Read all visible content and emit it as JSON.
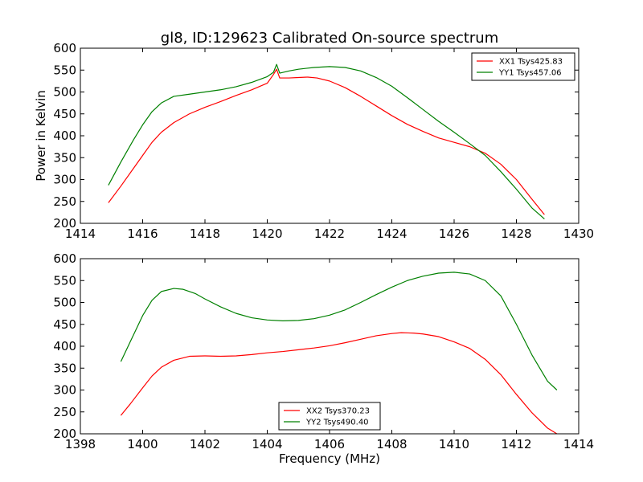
{
  "chart_data": [
    {
      "type": "line",
      "title": "gl8, ID:129623 Calibrated On-source spectrum",
      "xlabel": "",
      "ylabel": "Power in Kelvin",
      "xlim": [
        1414,
        1430
      ],
      "ylim": [
        200,
        600
      ],
      "xticks": [
        "1414",
        "1416",
        "1418",
        "1420",
        "1422",
        "1424",
        "1426",
        "1428",
        "1430"
      ],
      "yticks": [
        "200",
        "250",
        "300",
        "350",
        "400",
        "450",
        "500",
        "550",
        "600"
      ],
      "grid": false,
      "legend_position": "top-right",
      "series": [
        {
          "name": "XX1 Tsys425.83",
          "color": "#ff0000",
          "x": [
            1414.9,
            1415.3,
            1415.7,
            1416.0,
            1416.3,
            1416.6,
            1417.0,
            1417.5,
            1418.0,
            1418.5,
            1419.0,
            1419.5,
            1420.0,
            1420.2,
            1420.3,
            1420.4,
            1420.7,
            1421.0,
            1421.3,
            1421.6,
            1422.0,
            1422.5,
            1423.0,
            1423.5,
            1424.0,
            1424.5,
            1425.0,
            1425.5,
            1426.0,
            1426.5,
            1427.0,
            1427.5,
            1428.0,
            1428.5,
            1428.9
          ],
          "y": [
            247,
            285,
            325,
            355,
            385,
            408,
            430,
            450,
            465,
            478,
            492,
            505,
            520,
            540,
            552,
            532,
            532,
            533,
            534,
            532,
            525,
            510,
            490,
            468,
            446,
            426,
            410,
            395,
            385,
            375,
            360,
            335,
            300,
            255,
            220
          ]
        },
        {
          "name": "YY1 Tsys457.06",
          "color": "#008000",
          "x": [
            1414.9,
            1415.3,
            1415.7,
            1416.0,
            1416.3,
            1416.6,
            1417.0,
            1417.5,
            1418.0,
            1418.5,
            1419.0,
            1419.5,
            1420.0,
            1420.2,
            1420.3,
            1420.4,
            1420.7,
            1421.0,
            1421.5,
            1422.0,
            1422.5,
            1423.0,
            1423.5,
            1424.0,
            1424.5,
            1425.0,
            1425.5,
            1426.0,
            1426.5,
            1427.0,
            1427.5,
            1428.0,
            1428.5,
            1428.9
          ],
          "y": [
            287,
            340,
            390,
            425,
            455,
            475,
            490,
            495,
            500,
            505,
            512,
            522,
            535,
            545,
            563,
            543,
            548,
            552,
            556,
            558,
            556,
            548,
            533,
            513,
            487,
            460,
            433,
            408,
            382,
            355,
            318,
            278,
            235,
            210
          ]
        }
      ]
    },
    {
      "type": "line",
      "title": "",
      "xlabel": "Frequency (MHz)",
      "ylabel": "",
      "xlim": [
        1398,
        1414
      ],
      "ylim": [
        200,
        600
      ],
      "xticks": [
        "1398",
        "1400",
        "1402",
        "1404",
        "1406",
        "1408",
        "1410",
        "1412",
        "1414"
      ],
      "yticks": [
        "200",
        "250",
        "300",
        "350",
        "400",
        "450",
        "500",
        "550",
        "600"
      ],
      "grid": false,
      "legend_position": "bottom-center",
      "series": [
        {
          "name": "XX2 Tsys370.23",
          "color": "#ff0000",
          "x": [
            1399.3,
            1399.6,
            1400.0,
            1400.3,
            1400.6,
            1401.0,
            1401.5,
            1402.0,
            1402.5,
            1403.0,
            1403.5,
            1404.0,
            1404.5,
            1405.0,
            1405.5,
            1406.0,
            1406.5,
            1407.0,
            1407.5,
            1408.0,
            1408.3,
            1408.7,
            1409.0,
            1409.5,
            1410.0,
            1410.5,
            1411.0,
            1411.5,
            1412.0,
            1412.5,
            1413.0,
            1413.3
          ],
          "y": [
            242,
            268,
            305,
            332,
            352,
            368,
            377,
            378,
            377,
            378,
            381,
            385,
            388,
            392,
            396,
            401,
            408,
            416,
            424,
            429,
            431,
            430,
            428,
            422,
            410,
            395,
            370,
            335,
            290,
            248,
            213,
            200
          ]
        },
        {
          "name": "YY2 Tsys490.40",
          "color": "#008000",
          "x": [
            1399.3,
            1399.6,
            1400.0,
            1400.3,
            1400.6,
            1401.0,
            1401.3,
            1401.7,
            1402.0,
            1402.5,
            1403.0,
            1403.5,
            1404.0,
            1404.5,
            1405.0,
            1405.5,
            1406.0,
            1406.5,
            1407.0,
            1407.5,
            1408.0,
            1408.5,
            1409.0,
            1409.5,
            1410.0,
            1410.5,
            1411.0,
            1411.5,
            1412.0,
            1412.5,
            1413.0,
            1413.3
          ],
          "y": [
            365,
            410,
            470,
            505,
            525,
            532,
            530,
            520,
            508,
            490,
            475,
            465,
            460,
            458,
            459,
            463,
            471,
            483,
            500,
            518,
            535,
            550,
            560,
            567,
            569,
            565,
            550,
            515,
            450,
            380,
            320,
            300
          ]
        }
      ]
    }
  ]
}
